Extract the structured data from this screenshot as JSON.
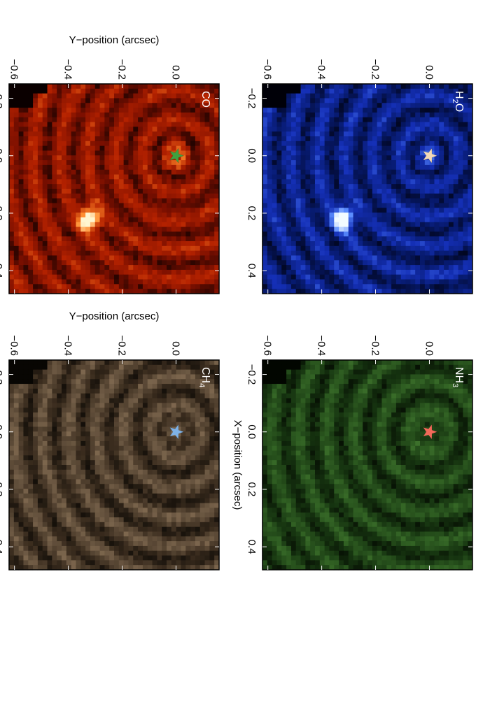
{
  "chart_data": [
    {
      "type": "heatmap",
      "title": "",
      "xlabel": "",
      "ylabel": "Y−position (arcsec)",
      "xlim": [
        -0.25,
        0.48
      ],
      "ylim": [
        0.16,
        -0.62
      ],
      "x_ticks": [
        -0.2,
        0.0,
        0.2,
        0.4
      ],
      "y_ticks": [
        0.0,
        -0.2,
        -0.4,
        -0.6
      ],
      "label": "CO",
      "label_parts": [
        {
          "t": "CO",
          "sub": false
        }
      ],
      "colormap": [
        "#0a0000",
        "#7a0f00",
        "#b52200",
        "#ff8a2a",
        "#fff6d0"
      ],
      "star_marker": {
        "x": 0.0,
        "y": 0.0,
        "color": "#3fa13f"
      },
      "bright_source": {
        "x": 0.22,
        "y": -0.32
      }
    },
    {
      "type": "heatmap",
      "title": "",
      "xlabel": "",
      "ylabel": "",
      "xlim": [
        -0.25,
        0.48
      ],
      "ylim": [
        0.16,
        -0.62
      ],
      "x_ticks": [
        -0.2,
        0.0,
        0.2,
        0.4
      ],
      "y_ticks": [
        0.0,
        -0.2,
        -0.4,
        -0.6
      ],
      "label": "H2O",
      "label_parts": [
        {
          "t": "H",
          "sub": false
        },
        {
          "t": "2",
          "sub": true
        },
        {
          "t": "O",
          "sub": false
        }
      ],
      "colormap": [
        "#000008",
        "#071a6e",
        "#1530b8",
        "#5a8cff",
        "#f2fbff"
      ],
      "star_marker": {
        "x": 0.0,
        "y": 0.0,
        "color": "#f3d9b8"
      },
      "bright_source": {
        "x": 0.22,
        "y": -0.32
      }
    },
    {
      "type": "heatmap",
      "title": "",
      "xlabel": "X−position (arcsec)",
      "ylabel": "Y−position (arcsec)",
      "xlim": [
        -0.25,
        0.48
      ],
      "ylim": [
        0.16,
        -0.62
      ],
      "x_ticks": [
        -0.2,
        0.0,
        0.2,
        0.4
      ],
      "y_ticks": [
        0.0,
        -0.2,
        -0.4,
        -0.6
      ],
      "label": "CH4",
      "label_parts": [
        {
          "t": "CH",
          "sub": false
        },
        {
          "t": "4",
          "sub": true
        }
      ],
      "colormap": [
        "#080603",
        "#3a2c1e",
        "#6e5a44",
        "#a08566",
        "#d9c3a3"
      ],
      "star_marker": {
        "x": 0.0,
        "y": 0.0,
        "color": "#7fb2e6"
      }
    },
    {
      "type": "heatmap",
      "title": "",
      "xlabel": "X−position (arcsec)",
      "ylabel": "",
      "xlim": [
        -0.25,
        0.48
      ],
      "ylim": [
        0.16,
        -0.62
      ],
      "x_ticks": [
        -0.2,
        0.0,
        0.2,
        0.4
      ],
      "y_ticks": [
        0.0,
        -0.2,
        -0.4,
        -0.6
      ],
      "label": "NH3",
      "label_parts": [
        {
          "t": "NH",
          "sub": false
        },
        {
          "t": "3",
          "sub": true
        }
      ],
      "colormap": [
        "#020600",
        "#163410",
        "#2f5e22",
        "#4f8a38",
        "#86b85e"
      ],
      "star_marker": {
        "x": 0.0,
        "y": 0.0,
        "color": "#f26a5a"
      }
    }
  ]
}
